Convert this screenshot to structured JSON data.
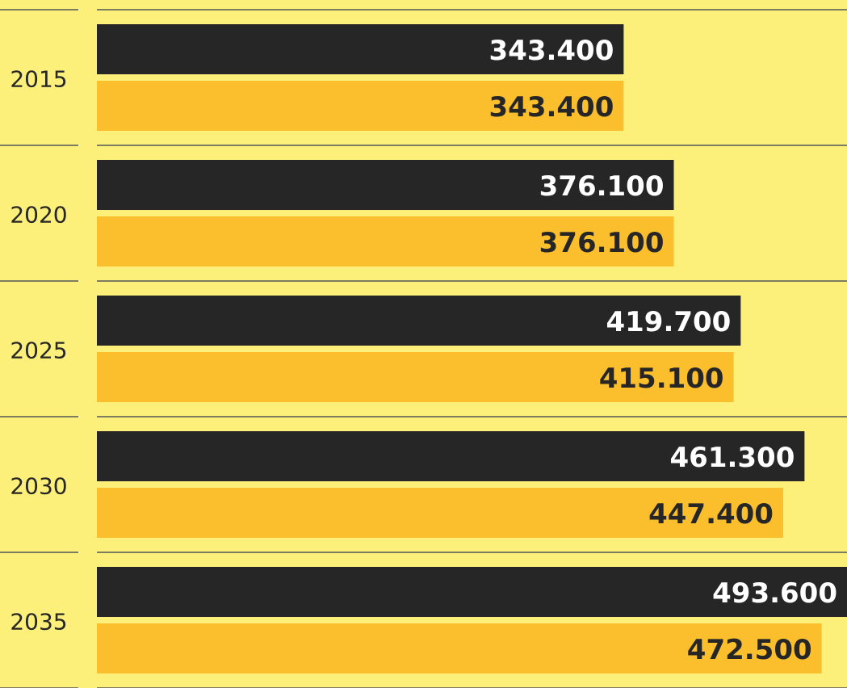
{
  "chart_data": {
    "type": "bar",
    "orientation": "horizontal",
    "categories": [
      "2015",
      "2020",
      "2025",
      "2030",
      "2035"
    ],
    "series": [
      {
        "color": "#262626",
        "label_color": "#ffffff",
        "values": [
          343400,
          376100,
          419700,
          461300,
          493600
        ],
        "value_labels": [
          "343.400",
          "376.100",
          "419.700",
          "461.300",
          "493.600"
        ]
      },
      {
        "color": "#fbbf2e",
        "label_color": "#262626",
        "values": [
          343400,
          376100,
          415100,
          447400,
          472500
        ],
        "value_labels": [
          "343.400",
          "376.100",
          "415.100",
          "447.400",
          "472.500"
        ]
      }
    ],
    "xlim": [
      0,
      489000
    ],
    "background": "#fdf07a"
  }
}
